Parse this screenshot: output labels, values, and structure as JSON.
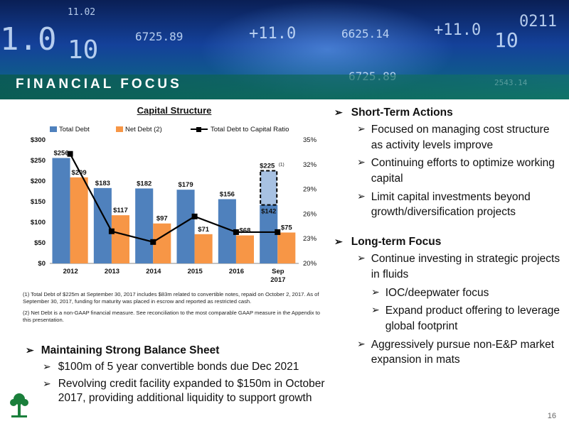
{
  "banner": {
    "title": "FINANCIAL FOCUS"
  },
  "chart": {
    "title": "Capital Structure",
    "legend": [
      "Total Debt",
      "Net Debt (2)",
      "Total Debt to Capital Ratio"
    ],
    "y_left_ticks": [
      "$0",
      "$50",
      "$100",
      "$150",
      "$200",
      "$250",
      "$300"
    ],
    "y_right_ticks": [
      "20%",
      "23%",
      "26%",
      "29%",
      "32%",
      "35%"
    ],
    "categories": [
      "2012",
      "2013",
      "2014",
      "2015",
      "2016",
      "Sep 2017"
    ],
    "total_debt_labels": [
      "$256",
      "$183",
      "$182",
      "$179",
      "$156",
      "$225"
    ],
    "net_debt_labels": [
      "$209",
      "$117",
      "$97",
      "$71",
      "$68",
      "$75"
    ],
    "extra_label": "$142",
    "footnote_marker": "(1)"
  },
  "chart_data": {
    "type": "bar",
    "title": "Capital Structure",
    "categories": [
      "2012",
      "2013",
      "2014",
      "2015",
      "2016",
      "Sep 2017"
    ],
    "series": [
      {
        "name": "Total Debt",
        "values": [
          256,
          183,
          182,
          179,
          156,
          225
        ],
        "color": "#4f81bd"
      },
      {
        "name": "Net Debt (2)",
        "values": [
          209,
          117,
          97,
          71,
          68,
          75
        ],
        "color": "#f79646"
      },
      {
        "name": "Total Debt to Capital Ratio",
        "type": "line",
        "axis": "right",
        "values": [
          33.3,
          23.9,
          22.6,
          25.7,
          23.8,
          23.8
        ],
        "color": "#000000"
      }
    ],
    "sep2017_breakdown": {
      "solid": 142,
      "dashed": 83
    },
    "ylim": [
      0,
      300
    ],
    "y2lim": [
      20,
      35
    ],
    "legend_position": "top"
  },
  "footnotes": [
    "(1) Total Debt of $225m at September 30, 2017 includes $83m related to convertible notes, repaid on October 2, 2017.  As of September 30, 2017, funding for maturity was placed in escrow  and reported as restricted cash.",
    "(2) Net Debt is  a non-GAAP financial measure.  See reconciliation to the most comparable GAAP measure in the Appendix to this presentation."
  ],
  "left_bullets": {
    "heading": "Maintaining Strong Balance Sheet",
    "items": [
      "$100m of 5 year convertible bonds due Dec 2021",
      "Revolving credit facility expanded to $150m in October 2017, providing additional liquidity to support growth"
    ]
  },
  "right_bullets": {
    "short_term": {
      "heading": "Short-Term Actions",
      "items": [
        "Focused on managing cost structure as activity levels improve",
        "Continuing efforts to optimize working capital",
        "Limit capital investments beyond growth/diversification projects"
      ]
    },
    "long_term": {
      "heading": "Long-term Focus",
      "item1": "Continue investing in strategic projects in fluids",
      "subitems": [
        "IOC/deepwater focus",
        "Expand product offering to leverage global footprint"
      ],
      "item2": "Aggressively pursue non-E&P market expansion in mats"
    }
  },
  "arrow_glyph": "➢",
  "page_number": "16"
}
